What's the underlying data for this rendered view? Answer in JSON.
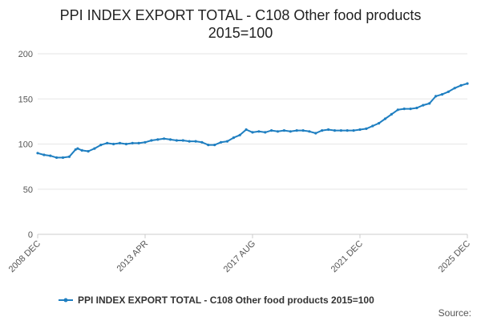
{
  "chart_data": {
    "type": "line",
    "title_lines": [
      "PPI INDEX EXPORT TOTAL - C108 Other food products",
      "2015=100"
    ],
    "xlabel": "",
    "ylabel": "",
    "ylim": [
      0,
      200
    ],
    "y_ticks": [
      0,
      50,
      100,
      150,
      200
    ],
    "x_tick_labels": [
      "2008 DEC",
      "2013 APR",
      "2017 AUG",
      "2021 DEC",
      "2025 DEC"
    ],
    "x_range": [
      "2008-12",
      "2025-12"
    ],
    "grid": "horizontal",
    "legend_position": "bottom",
    "source_label": "Source:",
    "colors": {
      "series": "#1f7fc1",
      "grid": "#e6e6e6",
      "axis": "#cccccc"
    },
    "series": [
      {
        "name": "PPI INDEX EXPORT TOTAL - C108 Other food products 2015=100",
        "x": [
          "2008-12",
          "2009-03",
          "2009-06",
          "2009-09",
          "2009-12",
          "2010-03",
          "2010-06",
          "2010-07",
          "2010-09",
          "2010-12",
          "2011-03",
          "2011-06",
          "2011-09",
          "2011-12",
          "2012-03",
          "2012-06",
          "2012-09",
          "2012-12",
          "2013-03",
          "2013-06",
          "2013-09",
          "2013-12",
          "2014-03",
          "2014-06",
          "2014-09",
          "2014-12",
          "2015-03",
          "2015-06",
          "2015-09",
          "2015-12",
          "2016-03",
          "2016-06",
          "2016-09",
          "2016-12",
          "2017-03",
          "2017-06",
          "2017-09",
          "2017-12",
          "2018-03",
          "2018-06",
          "2018-09",
          "2018-12",
          "2019-03",
          "2019-06",
          "2019-09",
          "2019-12",
          "2020-03",
          "2020-06",
          "2020-09",
          "2020-12",
          "2021-03",
          "2021-06",
          "2021-09",
          "2021-12",
          "2022-03",
          "2022-06",
          "2022-09",
          "2022-12",
          "2023-03",
          "2023-06",
          "2023-09",
          "2023-12",
          "2024-03",
          "2024-06",
          "2024-09",
          "2024-12",
          "2025-03",
          "2025-06",
          "2025-09",
          "2025-12"
        ],
        "y": [
          90,
          88,
          87,
          85,
          85,
          86,
          94,
          95,
          93,
          92,
          95,
          99,
          101,
          100,
          101,
          100,
          101,
          101,
          102,
          104,
          105,
          106,
          105,
          104,
          104,
          103,
          103,
          102,
          99,
          99,
          102,
          103,
          107,
          110,
          116,
          113,
          114,
          113,
          115,
          114,
          115,
          114,
          115,
          115,
          114,
          112,
          115,
          116,
          115,
          115,
          115,
          115,
          116,
          117,
          120,
          123,
          128,
          133,
          138,
          139,
          139,
          140,
          143,
          145,
          153,
          155,
          158,
          162,
          165,
          167
        ]
      }
    ]
  }
}
